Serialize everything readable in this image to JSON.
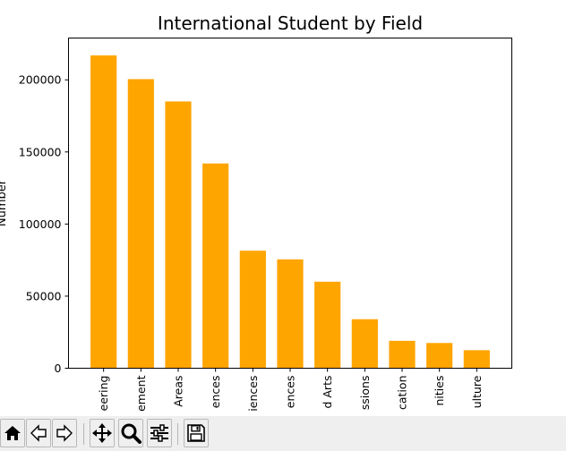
{
  "chart_data": {
    "type": "bar",
    "title": "International Student by Field",
    "ylabel": "Number",
    "xlabel": "",
    "categories": [
      "Engineering",
      "Management",
      "Other Areas",
      "Math and Computer Sciences",
      "Social Sciences",
      "Physical and Life Sciences",
      "Fine and Applied Arts",
      "Health Professions",
      "Education",
      "Humanities",
      "Agriculture"
    ],
    "tick_labels_visible": [
      "eering",
      "ement",
      "Areas",
      "ences",
      "iences",
      "ences",
      "d Arts",
      "ssions",
      "cation",
      "nities",
      "ulture"
    ],
    "values": [
      217000,
      200500,
      185000,
      142000,
      81500,
      75500,
      60000,
      34000,
      19000,
      17500,
      12500
    ],
    "ylim": [
      0,
      229000
    ],
    "yticks": [
      0,
      50000,
      100000,
      150000,
      200000
    ],
    "ytick_labels": [
      "0",
      "50000",
      "100000",
      "150000",
      "200000"
    ],
    "bar_color": "#ffa500",
    "grid": false,
    "legend": "none"
  },
  "toolbar": {
    "buttons": [
      {
        "name": "home-icon"
      },
      {
        "name": "back-icon"
      },
      {
        "name": "forward-icon"
      },
      {
        "name": "pan-icon"
      },
      {
        "name": "zoom-icon"
      },
      {
        "name": "configure-subplots-icon"
      },
      {
        "name": "save-icon"
      }
    ]
  }
}
